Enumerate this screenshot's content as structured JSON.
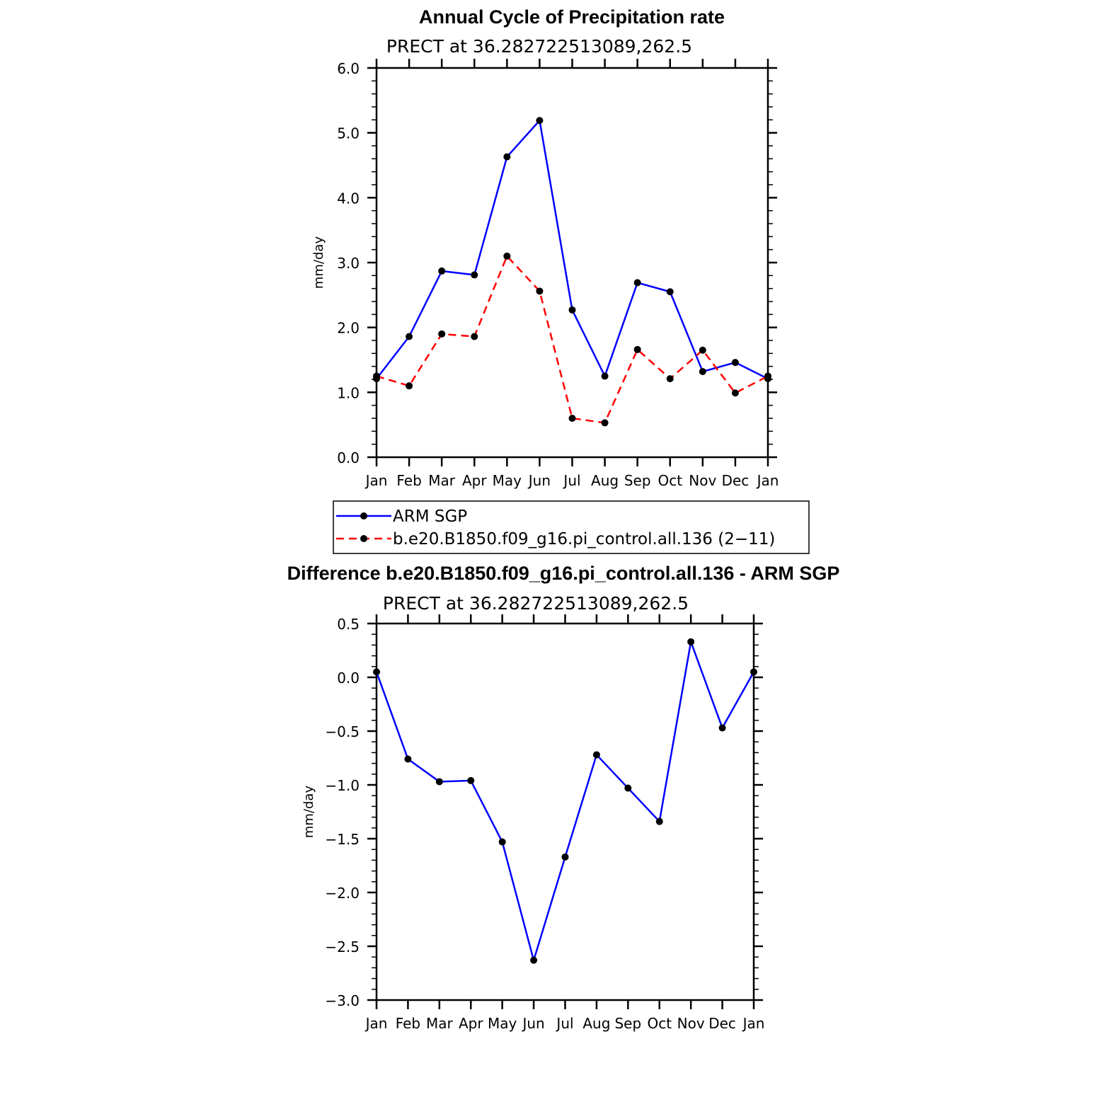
{
  "chart_data": [
    {
      "type": "line",
      "title": "Annual Cycle of Precipitation rate",
      "subtitle": "PRECT at 36.282722513089,262.5",
      "xlabel": "",
      "ylabel": "mm/day",
      "categories": [
        "Jan",
        "Feb",
        "Mar",
        "Apr",
        "May",
        "Jun",
        "Jul",
        "Aug",
        "Sep",
        "Oct",
        "Nov",
        "Dec",
        "Jan"
      ],
      "ylim": [
        0.0,
        6.0
      ],
      "yticks": [
        "0.0",
        "1.0",
        "2.0",
        "3.0",
        "4.0",
        "5.0",
        "6.0"
      ],
      "series": [
        {
          "name": "ARM SGP",
          "color": "#0000ff",
          "dash": "solid",
          "values": [
            1.21,
            1.86,
            2.87,
            2.81,
            4.63,
            5.19,
            2.27,
            1.25,
            2.69,
            2.55,
            1.32,
            1.46,
            1.21
          ]
        },
        {
          "name": "b.e20.B1850.f09_g16.pi_control.all.136 (2−11)",
          "color": "#ff0000",
          "dash": "dashed",
          "values": [
            1.25,
            1.1,
            1.9,
            1.86,
            3.1,
            2.56,
            0.6,
            0.53,
            1.66,
            1.21,
            1.65,
            0.99,
            1.25
          ]
        }
      ],
      "legend": "below"
    },
    {
      "type": "line",
      "title": "Difference b.e20.B1850.f09_g16.pi_control.all.136 - ARM SGP",
      "subtitle": "PRECT at 36.282722513089,262.5",
      "xlabel": "",
      "ylabel": "mm/day",
      "categories": [
        "Jan",
        "Feb",
        "Mar",
        "Apr",
        "May",
        "Jun",
        "Jul",
        "Aug",
        "Sep",
        "Oct",
        "Nov",
        "Dec",
        "Jan"
      ],
      "ylim": [
        -3.0,
        0.5
      ],
      "yticks": [
        "−3.0",
        "−2.5",
        "−2.0",
        "−1.5",
        "−1.0",
        "−0.5",
        "0.0",
        "0.5"
      ],
      "series": [
        {
          "name": "Difference",
          "color": "#0000ff",
          "dash": "solid",
          "values": [
            0.05,
            -0.76,
            -0.97,
            -0.96,
            -1.53,
            -2.63,
            -1.67,
            -0.72,
            -1.03,
            -1.34,
            0.33,
            -0.47,
            0.05
          ]
        }
      ]
    }
  ]
}
